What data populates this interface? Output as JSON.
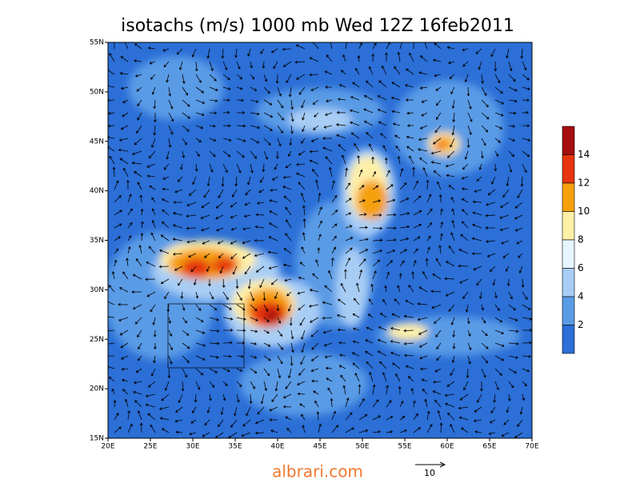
{
  "title": "isotachs (m/s) 1000 mb Wed 12Z 16feb2011",
  "lat_labels": [
    "55N",
    "50N",
    "45N",
    "40N",
    "35N",
    "30N",
    "25N",
    "20N",
    "15N"
  ],
  "lon_labels": [
    "20E",
    "25E",
    "30E",
    "35E",
    "40E",
    "45E",
    "50E",
    "55E",
    "60E",
    "65E",
    "70E"
  ],
  "colorbar": {
    "labels": [
      "14",
      "12",
      "10",
      "8",
      "6",
      "4",
      "2"
    ],
    "colors": [
      "#a50f0f",
      "#e6350f",
      "#f5a00a",
      "#fff0a8",
      "#e6f5ff",
      "#a8cdf5",
      "#5a9be6",
      "#2b6fd7"
    ]
  },
  "reference_vector": "10",
  "watermark": "albrari.com"
}
